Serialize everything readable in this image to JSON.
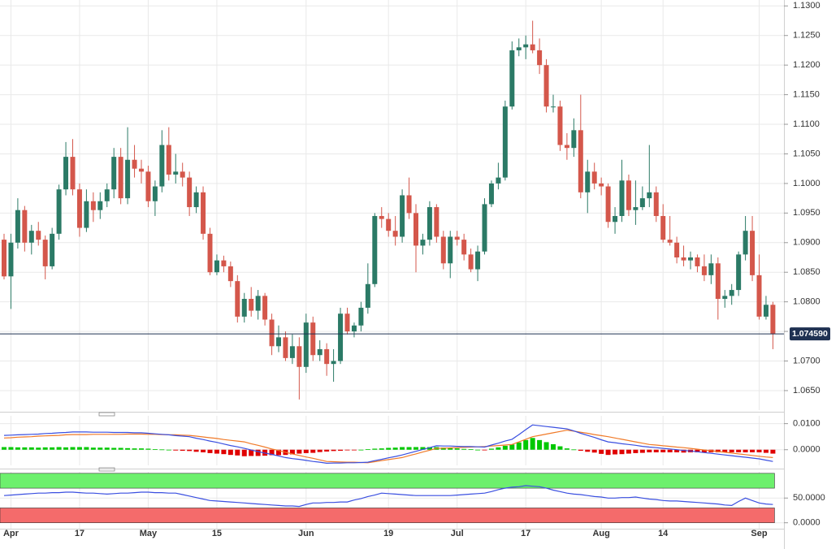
{
  "chart_data": [
    {
      "type": "candlestick",
      "categories": [
        null,
        "Apr",
        null,
        null,
        null,
        null,
        null,
        null,
        null,
        null,
        null,
        "17",
        null,
        null,
        null,
        null,
        null,
        null,
        null,
        null,
        null,
        "May",
        null,
        null,
        null,
        null,
        null,
        null,
        null,
        null,
        null,
        "15",
        null,
        null,
        null,
        null,
        null,
        null,
        null,
        null,
        null,
        null,
        null,
        null,
        "Jun",
        null,
        null,
        null,
        null,
        null,
        null,
        null,
        null,
        null,
        null,
        null,
        "19",
        null,
        null,
        null,
        null,
        null,
        null,
        null,
        null,
        null,
        "Jul",
        null,
        null,
        null,
        null,
        null,
        null,
        null,
        null,
        null,
        "17",
        null,
        null,
        null,
        null,
        null,
        null,
        null,
        null,
        null,
        null,
        "Aug",
        null,
        null,
        null,
        null,
        null,
        null,
        null,
        null,
        "14",
        null,
        null,
        null,
        null,
        null,
        null,
        null,
        null,
        null,
        null,
        null,
        null,
        null,
        "Sep",
        null,
        null
      ],
      "open": [
        1.0905,
        1.0843,
        1.09,
        1.0955,
        1.09,
        1.092,
        1.0905,
        1.086,
        1.0915,
        1.099,
        1.1045,
        1.099,
        1.0925,
        1.097,
        1.0955,
        1.097,
        1.099,
        1.1045,
        1.0975,
        1.104,
        1.1025,
        1.102,
        1.097,
        1.0995,
        1.1065,
        1.1015,
        1.102,
        1.101,
        1.096,
        1.0985,
        1.0915,
        1.085,
        1.087,
        1.086,
        1.0835,
        1.0775,
        1.0805,
        1.0785,
        1.081,
        1.077,
        1.0725,
        1.074,
        1.0705,
        1.0725,
        1.069,
        1.0765,
        1.071,
        1.072,
        1.0695,
        1.07,
        1.078,
        1.075,
        1.076,
        1.079,
        1.083,
        1.0945,
        1.094,
        1.092,
        1.091,
        1.098,
        1.095,
        1.0895,
        1.0905,
        1.096,
        1.091,
        1.0865,
        1.091,
        1.0905,
        1.088,
        1.0855,
        1.0885,
        1.0965,
        1.1,
        1.101,
        1.113,
        1.1225,
        1.123,
        1.1235,
        1.1225,
        1.12,
        1.113,
        1.113,
        1.1065,
        1.106,
        1.109,
        1.0985,
        1.102,
        1.1,
        1.0995,
        1.0935,
        1.0945,
        1.1005,
        1.0955,
        1.096,
        1.0975,
        1.0985,
        1.0945,
        1.0905,
        1.09,
        1.0875,
        1.087,
        1.0875,
        1.086,
        1.0845,
        1.0865,
        1.0805,
        1.081,
        1.082,
        1.088,
        1.092,
        1.0845,
        1.0775,
        1.0795
      ],
      "high": [
        1.0915,
        1.0915,
        1.0975,
        1.0962,
        1.093,
        1.0935,
        1.0912,
        1.0925,
        1.0998,
        1.107,
        1.1075,
        1.1,
        1.099,
        1.0985,
        1.0985,
        1.1,
        1.106,
        1.106,
        1.1095,
        1.1065,
        1.104,
        1.103,
        1.1005,
        1.109,
        1.1095,
        1.105,
        1.1035,
        1.102,
        1.0995,
        1.0995,
        1.0925,
        1.088,
        1.0878,
        1.0868,
        1.0845,
        1.0815,
        1.0825,
        1.082,
        1.0815,
        1.078,
        1.076,
        1.075,
        1.0745,
        1.074,
        1.078,
        1.0775,
        1.0735,
        1.073,
        1.072,
        1.079,
        1.079,
        1.0765,
        1.08,
        1.0865,
        1.095,
        1.096,
        1.095,
        1.0945,
        1.099,
        1.101,
        1.0965,
        1.0915,
        1.097,
        1.0965,
        1.092,
        1.092,
        1.092,
        1.0915,
        1.089,
        1.0895,
        1.0975,
        1.1005,
        1.1035,
        1.114,
        1.124,
        1.1245,
        1.125,
        1.1275,
        1.1245,
        1.121,
        1.115,
        1.114,
        1.1085,
        1.111,
        1.115,
        1.104,
        1.1035,
        1.101,
        1.1,
        1.096,
        1.104,
        1.1015,
        1.1005,
        1.0995,
        1.1065,
        1.0995,
        1.0965,
        1.0945,
        1.091,
        1.0895,
        1.0885,
        1.088,
        1.088,
        1.088,
        1.0875,
        1.082,
        1.083,
        1.0885,
        1.0945,
        1.0945,
        1.088,
        1.081,
        1.08
      ],
      "low": [
        1.0838,
        1.0788,
        1.089,
        1.0885,
        1.088,
        1.0895,
        1.0838,
        1.0855,
        1.0905,
        1.098,
        1.098,
        1.091,
        1.0918,
        1.0935,
        1.094,
        1.096,
        1.0975,
        1.0965,
        1.0965,
        1.101,
        1.1,
        1.096,
        1.0945,
        1.0985,
        1.1005,
        1.1,
        1.0995,
        1.0945,
        1.095,
        1.0905,
        1.0845,
        1.0845,
        1.085,
        1.0825,
        1.0765,
        1.0765,
        1.0775,
        1.077,
        1.076,
        1.071,
        1.0715,
        1.07,
        1.0695,
        1.0635,
        1.068,
        1.07,
        1.07,
        1.0675,
        1.0665,
        1.0695,
        1.0745,
        1.074,
        1.075,
        1.078,
        1.0825,
        1.0925,
        1.091,
        1.0895,
        1.09,
        1.094,
        1.085,
        1.088,
        1.0895,
        1.09,
        1.0855,
        1.084,
        1.0895,
        1.087,
        1.085,
        1.0835,
        1.088,
        1.096,
        1.099,
        1.1005,
        1.1125,
        1.1215,
        1.121,
        1.122,
        1.1185,
        1.112,
        1.112,
        1.1055,
        1.104,
        1.1045,
        1.0975,
        1.095,
        1.099,
        1.098,
        1.0925,
        1.0915,
        1.0935,
        1.0945,
        1.093,
        1.0955,
        1.096,
        1.0935,
        1.09,
        1.0895,
        1.0865,
        1.086,
        1.0855,
        1.085,
        1.0835,
        1.083,
        1.077,
        1.079,
        1.0795,
        1.081,
        1.087,
        1.0835,
        1.077,
        1.077,
        1.072
      ],
      "close": [
        1.0843,
        1.09,
        1.0955,
        1.09,
        1.092,
        1.0905,
        1.086,
        1.0915,
        1.099,
        1.1045,
        1.099,
        1.0925,
        1.097,
        1.0955,
        1.097,
        1.099,
        1.1045,
        1.0975,
        1.104,
        1.1025,
        1.102,
        1.097,
        1.0995,
        1.1065,
        1.1015,
        1.102,
        1.101,
        1.096,
        1.0985,
        1.0915,
        1.085,
        1.087,
        1.086,
        1.0835,
        1.0775,
        1.0805,
        1.0785,
        1.081,
        1.077,
        1.0725,
        1.074,
        1.0705,
        1.0725,
        1.069,
        1.0765,
        1.071,
        1.072,
        1.0695,
        1.07,
        1.078,
        1.075,
        1.076,
        1.079,
        1.083,
        1.0945,
        1.094,
        1.092,
        1.091,
        1.098,
        1.095,
        1.0895,
        1.0905,
        1.096,
        1.091,
        1.0865,
        1.091,
        1.0905,
        1.088,
        1.0855,
        1.0885,
        1.0965,
        1.1,
        1.101,
        1.113,
        1.1225,
        1.123,
        1.1235,
        1.1225,
        1.12,
        1.113,
        1.113,
        1.1065,
        1.106,
        1.109,
        1.0985,
        1.102,
        1.1,
        1.0995,
        1.0935,
        1.0945,
        1.1005,
        1.0955,
        1.096,
        1.0975,
        1.0985,
        1.0945,
        1.0905,
        1.09,
        1.0875,
        1.087,
        1.0875,
        1.086,
        1.0845,
        1.0865,
        1.0805,
        1.081,
        1.082,
        1.088,
        1.092,
        1.0845,
        1.0775,
        1.0795,
        1.0746
      ],
      "up_color": "#2b7a66",
      "down_color": "#d4574b",
      "ylim": [
        1.0617,
        1.131
      ],
      "yticks": [
        {
          "value": 1.13,
          "label": "1.1300"
        },
        {
          "value": 1.125,
          "label": "1.1250"
        },
        {
          "value": 1.12,
          "label": "1.1200"
        },
        {
          "value": 1.115,
          "label": "1.1150"
        },
        {
          "value": 1.11,
          "label": "1.1100"
        },
        {
          "value": 1.105,
          "label": "1.1050"
        },
        {
          "value": 1.1,
          "label": "1.1000"
        },
        {
          "value": 1.095,
          "label": "1.0950"
        },
        {
          "value": 1.09,
          "label": "1.0900"
        },
        {
          "value": 1.085,
          "label": "1.0850"
        },
        {
          "value": 1.08,
          "label": "1.0800"
        },
        {
          "value": 1.075,
          "label": "1.0750"
        },
        {
          "value": 1.07,
          "label": "1.0700"
        },
        {
          "value": 1.065,
          "label": "1.0650"
        }
      ],
      "last_price": {
        "value": 1.07459,
        "label": "1.074590",
        "color": "#1f3152"
      },
      "grid": true
    },
    {
      "type": "macd",
      "series": [
        {
          "name": "MACD",
          "color": "#3a4fe0",
          "values": [
            0.0055,
            0.0056,
            0.0057,
            0.0058,
            0.0059,
            0.006,
            0.0062,
            0.0063,
            0.0065,
            0.0066,
            0.0068,
            0.0068,
            0.0068,
            0.0067,
            0.0067,
            0.0067,
            0.0066,
            0.0066,
            0.0066,
            0.0065,
            0.0065,
            0.0063,
            0.0061,
            0.0059,
            0.0057,
            0.0054,
            0.0052,
            0.005,
            0.0044,
            0.0039,
            0.0033,
            0.0028,
            0.0022,
            0.0016,
            0.0011,
            0.0005,
            -0.0001,
            -0.0007,
            -0.0013,
            -0.0018,
            -0.0024,
            -0.003,
            -0.0034,
            -0.0037,
            -0.0041,
            -0.0045,
            -0.0048,
            -0.0052,
            -0.0051,
            -0.0051,
            -0.005,
            -0.005,
            -0.0049,
            -0.0048,
            -0.0042,
            -0.0037,
            -0.0031,
            -0.0026,
            -0.002,
            -0.0013,
            -0.0006,
            0.0001,
            0.0008,
            0.0015,
            0.0014,
            0.0014,
            0.0013,
            0.0012,
            0.0012,
            0.0011,
            0.001,
            0.0018,
            0.0025,
            0.0033,
            0.004,
            0.0058,
            0.0077,
            0.0095,
            0.0092,
            0.0089,
            0.0086,
            0.0083,
            0.008,
            0.0072,
            0.0063,
            0.0055,
            0.0047,
            0.0038,
            0.003,
            0.0027,
            0.0023,
            0.002,
            0.0017,
            0.0013,
            0.001,
            0.0008,
            0.0005,
            0.0003,
            0.0,
            -0.0003,
            -0.0005,
            -0.0008,
            -0.0011,
            -0.0014,
            -0.0017,
            -0.002,
            -0.0023,
            -0.0026,
            -0.0029,
            -0.0032,
            -0.0035,
            -0.004,
            -0.0045
          ]
        },
        {
          "name": "Signal",
          "color": "#f07a28",
          "values": [
            0.0045,
            0.0046,
            0.0048,
            0.0049,
            0.005,
            0.0052,
            0.0053,
            0.0054,
            0.0055,
            0.0057,
            0.0058,
            0.0058,
            0.0058,
            0.0059,
            0.0059,
            0.0059,
            0.0059,
            0.0059,
            0.006,
            0.006,
            0.006,
            0.0059,
            0.0059,
            0.0058,
            0.0057,
            0.0057,
            0.0056,
            0.0055,
            0.0052,
            0.0049,
            0.0046,
            0.0043,
            0.0039,
            0.0036,
            0.0033,
            0.003,
            0.0023,
            0.0017,
            0.001,
            0.0003,
            -0.0003,
            -0.001,
            -0.0016,
            -0.0022,
            -0.0028,
            -0.0033,
            -0.0039,
            -0.0045,
            -0.0046,
            -0.0047,
            -0.0048,
            -0.0048,
            -0.0049,
            -0.005,
            -0.0046,
            -0.0042,
            -0.0038,
            -0.0034,
            -0.003,
            -0.0023,
            -0.0016,
            -0.0009,
            -0.0002,
            0.0005,
            0.0006,
            0.0007,
            0.0008,
            0.0009,
            0.001,
            0.0011,
            0.0012,
            0.0014,
            0.0016,
            0.0018,
            0.002,
            0.003,
            0.004,
            0.005,
            0.0055,
            0.006,
            0.0065,
            0.007,
            0.0075,
            0.0071,
            0.0067,
            0.0063,
            0.0058,
            0.0054,
            0.005,
            0.0045,
            0.004,
            0.0035,
            0.003,
            0.0025,
            0.002,
            0.0018,
            0.0015,
            0.0013,
            0.001,
            0.0008,
            0.0005,
            0.0002,
            -0.0001,
            -0.0004,
            -0.0007,
            -0.001,
            -0.0013,
            -0.0016,
            -0.0019,
            -0.0022,
            -0.0025,
            -0.0028,
            -0.003
          ]
        },
        {
          "name": "Histogram",
          "up_color": "#00c800",
          "down_color": "#e00000",
          "values": [
            0.001,
            0.001,
            0.0009,
            0.0009,
            0.0009,
            0.0008,
            0.0009,
            0.0009,
            0.001,
            0.0009,
            0.001,
            0.001,
            0.001,
            0.0008,
            0.0008,
            0.0008,
            0.0007,
            0.0007,
            0.0006,
            0.0005,
            0.0005,
            0.0004,
            0.0002,
            0.0001,
            0.0,
            -0.0003,
            -0.0004,
            -0.0005,
            -0.0008,
            -0.001,
            -0.0013,
            -0.0015,
            -0.0017,
            -0.002,
            -0.0022,
            -0.0025,
            -0.0024,
            -0.0024,
            -0.0023,
            -0.0021,
            -0.0021,
            -0.002,
            -0.0018,
            -0.0015,
            -0.0013,
            -0.0012,
            -0.0009,
            -0.0007,
            -0.0005,
            -0.0004,
            -0.0002,
            -0.0002,
            0.0,
            0.0002,
            0.0004,
            0.0005,
            0.0007,
            0.0008,
            0.001,
            0.001,
            0.001,
            0.001,
            0.001,
            0.001,
            0.0008,
            0.0007,
            0.0005,
            0.0003,
            0.0002,
            0.0,
            -0.0002,
            0.0004,
            0.0009,
            0.0015,
            0.002,
            0.0028,
            0.0037,
            0.0045,
            0.0037,
            0.0029,
            0.0021,
            0.0013,
            0.0005,
            0.0001,
            -0.0004,
            -0.0008,
            -0.0011,
            -0.0016,
            -0.002,
            -0.0018,
            -0.0017,
            -0.0015,
            -0.0013,
            -0.0012,
            -0.001,
            -0.001,
            -0.001,
            -0.001,
            -0.001,
            -0.0011,
            -0.001,
            -0.001,
            -0.001,
            -0.001,
            -0.001,
            -0.001,
            -0.001,
            -0.001,
            -0.001,
            -0.001,
            -0.001,
            -0.0012,
            -0.0015
          ]
        }
      ],
      "ylim": [
        -0.006,
        0.013
      ],
      "yticks": [
        {
          "value": 0.01,
          "label": "0.0100"
        },
        {
          "value": 0,
          "label": "0.0000"
        }
      ]
    },
    {
      "type": "rsi",
      "series": [
        {
          "name": "RSI",
          "color": "#3a4fe0",
          "values": [
            55,
            56,
            57,
            58,
            59,
            60,
            60,
            61,
            61,
            62,
            62,
            61,
            60,
            60,
            59,
            58,
            59,
            60,
            60,
            61,
            62,
            62,
            61,
            61,
            60,
            60,
            57,
            54,
            51,
            48,
            45,
            44,
            43,
            42,
            41,
            40,
            39,
            38,
            37,
            36,
            35,
            34,
            34,
            33,
            37,
            40,
            40,
            41,
            41,
            42,
            42,
            46,
            49,
            53,
            56,
            60,
            59,
            58,
            57,
            56,
            55,
            55,
            55,
            55,
            55,
            55,
            56,
            57,
            58,
            59,
            60,
            63,
            67,
            70,
            72,
            73,
            75,
            74,
            73,
            70,
            66,
            63,
            60,
            58,
            57,
            55,
            53,
            52,
            50,
            50,
            51,
            51,
            52,
            50,
            48,
            47,
            45,
            44,
            44,
            43,
            42,
            41,
            40,
            39,
            38,
            36,
            35,
            43,
            50,
            45,
            40,
            38,
            37
          ]
        }
      ],
      "bands": [
        {
          "from": 70,
          "to": 100,
          "color": "#6df06d"
        },
        {
          "from": 0,
          "to": 30,
          "color": "#f46b6b"
        }
      ],
      "ylim": [
        -12,
        103
      ],
      "yticks": [
        {
          "value": 50,
          "label": "50.0000"
        },
        {
          "value": 0,
          "label": "0.0000"
        }
      ]
    }
  ]
}
